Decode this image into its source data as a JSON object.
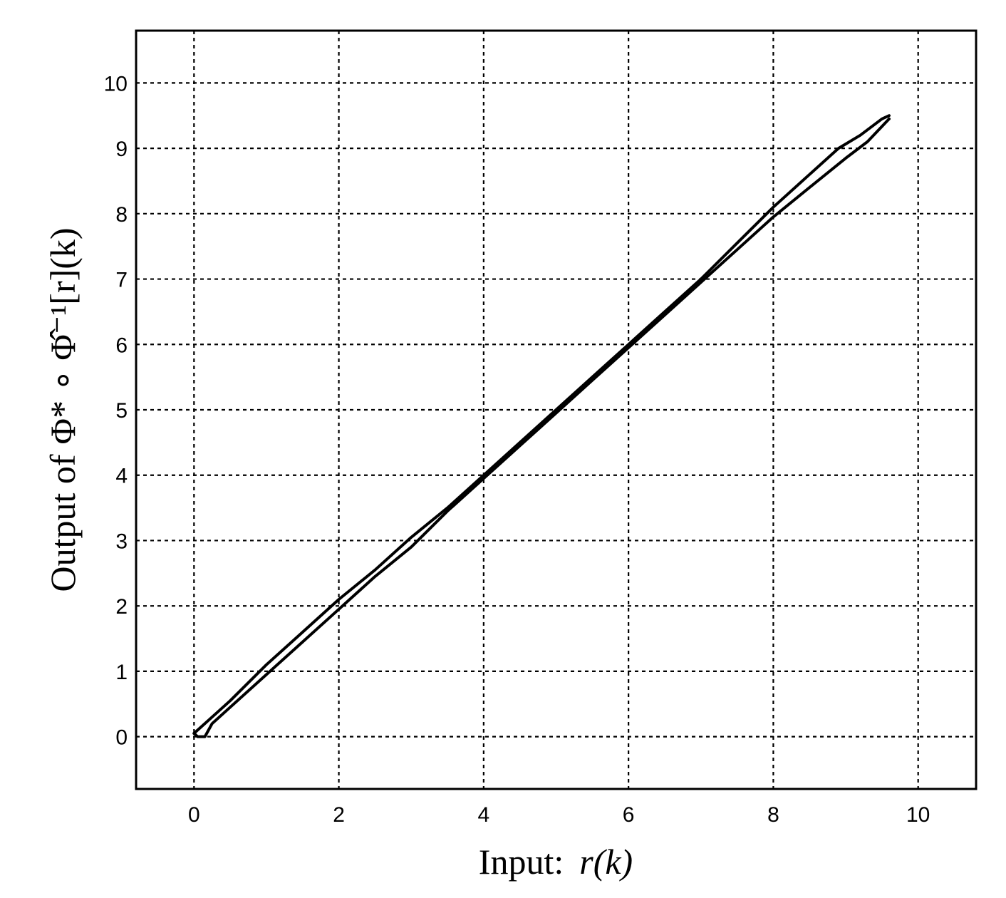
{
  "chart_data": {
    "type": "line",
    "title": "",
    "xlabel": {
      "prefix": "Input:",
      "expression": "r(k)"
    },
    "ylabel": {
      "prefix": "Output of",
      "expression": "Φ* ∘ Φ̂⁻¹[r](k)"
    },
    "xlim": [
      -0.8,
      10.8
    ],
    "ylim": [
      -0.8,
      10.8
    ],
    "xticks": [
      0,
      2,
      4,
      6,
      8,
      10
    ],
    "xtick_labels": [
      "0",
      "2",
      "4",
      "6",
      "8",
      "10"
    ],
    "yticks": [
      0,
      1,
      2,
      3,
      4,
      5,
      6,
      7,
      8,
      9,
      10
    ],
    "ytick_labels": [
      "0",
      "1",
      "2",
      "3",
      "4",
      "5",
      "6",
      "7",
      "8",
      "9",
      "10"
    ],
    "grid": true,
    "legend": "none",
    "line_color": "#000000",
    "series": [
      {
        "x": [
          0.0,
          0.05,
          0.2,
          0.5,
          1.0,
          1.5,
          2.0,
          2.5,
          3.0,
          3.5,
          4.0,
          4.5,
          5.0,
          5.5,
          6.0,
          6.5,
          7.0,
          7.5,
          8.0,
          8.5,
          8.9,
          9.2,
          9.5,
          9.6
        ],
        "y": [
          0.05,
          0.1,
          0.25,
          0.55,
          1.1,
          1.6,
          2.1,
          2.55,
          3.05,
          3.5,
          4.0,
          4.5,
          5.0,
          5.5,
          6.0,
          6.5,
          7.0,
          7.55,
          8.1,
          8.6,
          9.0,
          9.2,
          9.45,
          9.5
        ]
      },
      {
        "x": [
          9.6,
          9.3,
          9.0,
          8.5,
          8.0,
          7.5,
          7.0,
          6.5,
          6.0,
          5.5,
          5.0,
          4.5,
          4.0,
          3.5,
          3.0,
          2.5,
          2.0,
          1.5,
          1.0,
          0.5,
          0.25,
          0.15,
          0.05,
          0.0
        ],
        "y": [
          9.45,
          9.1,
          8.85,
          8.4,
          7.95,
          7.45,
          6.95,
          6.45,
          5.95,
          5.45,
          4.95,
          4.45,
          3.95,
          3.45,
          2.9,
          2.45,
          1.95,
          1.45,
          0.95,
          0.45,
          0.2,
          0.0,
          0.0,
          0.05
        ]
      }
    ]
  }
}
